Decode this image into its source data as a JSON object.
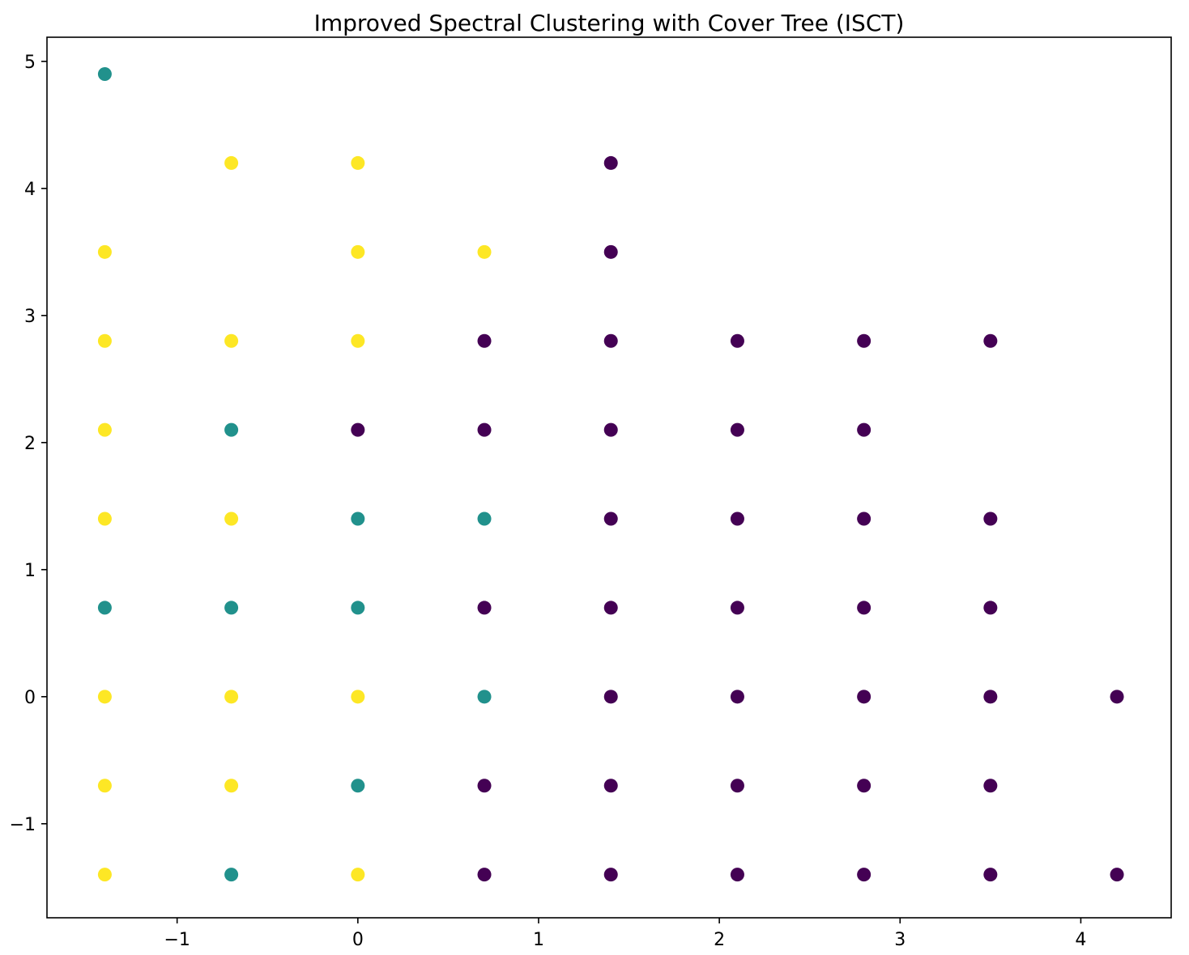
{
  "chart_data": {
    "type": "scatter",
    "title": "Improved Spectral Clustering with Cover Tree (ISCT)",
    "xlabel": "",
    "ylabel": "",
    "xlim": [
      -1.72,
      4.5
    ],
    "ylim": [
      -1.74,
      5.19
    ],
    "xticks": [
      -1,
      0,
      1,
      2,
      3,
      4
    ],
    "yticks": [
      -1,
      0,
      1,
      2,
      3,
      4,
      5
    ],
    "xtick_labels": [
      "−1",
      "0",
      "1",
      "2",
      "3",
      "4"
    ],
    "ytick_labels": [
      "−1",
      "0",
      "1",
      "2",
      "3",
      "4",
      "5"
    ],
    "grid": false,
    "legend": "none",
    "colors": {
      "cluster_0": "#440154",
      "cluster_1": "#21918c",
      "cluster_2": "#fde725"
    },
    "points": [
      {
        "x": -1.4,
        "y": 4.9,
        "cluster": 1
      },
      {
        "x": -0.7,
        "y": 4.2,
        "cluster": 2
      },
      {
        "x": 0.0,
        "y": 4.2,
        "cluster": 2
      },
      {
        "x": 1.4,
        "y": 4.2,
        "cluster": 0
      },
      {
        "x": -1.4,
        "y": 3.5,
        "cluster": 2
      },
      {
        "x": 0.0,
        "y": 3.5,
        "cluster": 2
      },
      {
        "x": 0.7,
        "y": 3.5,
        "cluster": 2
      },
      {
        "x": 1.4,
        "y": 3.5,
        "cluster": 0
      },
      {
        "x": -1.4,
        "y": 2.8,
        "cluster": 2
      },
      {
        "x": -0.7,
        "y": 2.8,
        "cluster": 2
      },
      {
        "x": 0.0,
        "y": 2.8,
        "cluster": 2
      },
      {
        "x": 0.7,
        "y": 2.8,
        "cluster": 0
      },
      {
        "x": 1.4,
        "y": 2.8,
        "cluster": 0
      },
      {
        "x": 2.1,
        "y": 2.8,
        "cluster": 0
      },
      {
        "x": 2.8,
        "y": 2.8,
        "cluster": 0
      },
      {
        "x": 3.5,
        "y": 2.8,
        "cluster": 0
      },
      {
        "x": -1.4,
        "y": 2.1,
        "cluster": 2
      },
      {
        "x": -0.7,
        "y": 2.1,
        "cluster": 1
      },
      {
        "x": 0.0,
        "y": 2.1,
        "cluster": 0
      },
      {
        "x": 0.7,
        "y": 2.1,
        "cluster": 0
      },
      {
        "x": 1.4,
        "y": 2.1,
        "cluster": 0
      },
      {
        "x": 2.1,
        "y": 2.1,
        "cluster": 0
      },
      {
        "x": 2.8,
        "y": 2.1,
        "cluster": 0
      },
      {
        "x": -1.4,
        "y": 1.4,
        "cluster": 2
      },
      {
        "x": -0.7,
        "y": 1.4,
        "cluster": 2
      },
      {
        "x": 0.0,
        "y": 1.4,
        "cluster": 1
      },
      {
        "x": 0.7,
        "y": 1.4,
        "cluster": 1
      },
      {
        "x": 1.4,
        "y": 1.4,
        "cluster": 0
      },
      {
        "x": 2.1,
        "y": 1.4,
        "cluster": 0
      },
      {
        "x": 2.8,
        "y": 1.4,
        "cluster": 0
      },
      {
        "x": 3.5,
        "y": 1.4,
        "cluster": 0
      },
      {
        "x": -1.4,
        "y": 0.7,
        "cluster": 1
      },
      {
        "x": -0.7,
        "y": 0.7,
        "cluster": 1
      },
      {
        "x": 0.0,
        "y": 0.7,
        "cluster": 1
      },
      {
        "x": 0.7,
        "y": 0.7,
        "cluster": 0
      },
      {
        "x": 1.4,
        "y": 0.7,
        "cluster": 0
      },
      {
        "x": 2.1,
        "y": 0.7,
        "cluster": 0
      },
      {
        "x": 2.8,
        "y": 0.7,
        "cluster": 0
      },
      {
        "x": 3.5,
        "y": 0.7,
        "cluster": 0
      },
      {
        "x": -1.4,
        "y": 0.0,
        "cluster": 2
      },
      {
        "x": -0.7,
        "y": 0.0,
        "cluster": 2
      },
      {
        "x": 0.0,
        "y": 0.0,
        "cluster": 2
      },
      {
        "x": 0.7,
        "y": 0.0,
        "cluster": 1
      },
      {
        "x": 1.4,
        "y": 0.0,
        "cluster": 0
      },
      {
        "x": 2.1,
        "y": 0.0,
        "cluster": 0
      },
      {
        "x": 2.8,
        "y": 0.0,
        "cluster": 0
      },
      {
        "x": 3.5,
        "y": 0.0,
        "cluster": 0
      },
      {
        "x": 4.2,
        "y": 0.0,
        "cluster": 0
      },
      {
        "x": -1.4,
        "y": -0.7,
        "cluster": 2
      },
      {
        "x": -0.7,
        "y": -0.7,
        "cluster": 2
      },
      {
        "x": 0.0,
        "y": -0.7,
        "cluster": 1
      },
      {
        "x": 0.7,
        "y": -0.7,
        "cluster": 0
      },
      {
        "x": 1.4,
        "y": -0.7,
        "cluster": 0
      },
      {
        "x": 2.1,
        "y": -0.7,
        "cluster": 0
      },
      {
        "x": 2.8,
        "y": -0.7,
        "cluster": 0
      },
      {
        "x": 3.5,
        "y": -0.7,
        "cluster": 0
      },
      {
        "x": -1.4,
        "y": -1.4,
        "cluster": 2
      },
      {
        "x": -0.7,
        "y": -1.4,
        "cluster": 1
      },
      {
        "x": 0.0,
        "y": -1.4,
        "cluster": 2
      },
      {
        "x": 0.7,
        "y": -1.4,
        "cluster": 0
      },
      {
        "x": 1.4,
        "y": -1.4,
        "cluster": 0
      },
      {
        "x": 2.1,
        "y": -1.4,
        "cluster": 0
      },
      {
        "x": 2.8,
        "y": -1.4,
        "cluster": 0
      },
      {
        "x": 3.5,
        "y": -1.4,
        "cluster": 0
      },
      {
        "x": 4.2,
        "y": -1.4,
        "cluster": 0
      }
    ]
  }
}
